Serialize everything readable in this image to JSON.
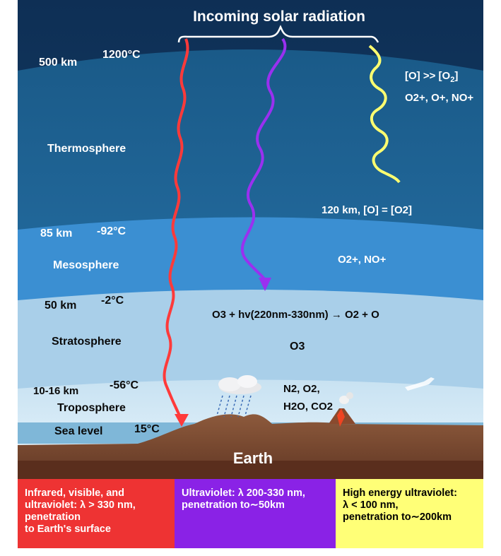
{
  "header": {
    "title": "Incoming solar radiation"
  },
  "altitudes": {
    "top": {
      "height": "500 km",
      "temp": "1200°C"
    },
    "mesopause": {
      "height": "85 km",
      "temp": "-92°C"
    },
    "stratopause": {
      "height": "50 km",
      "temp": "-2°C"
    },
    "tropopause": {
      "height": "10-16 km",
      "temp": "-56°C"
    },
    "sea_level": {
      "height": "Sea level",
      "temp": "15°C"
    }
  },
  "layers": {
    "thermosphere": "Thermosphere",
    "mesosphere": "Mesosphere",
    "stratosphere": "Stratosphere",
    "troposphere": "Troposphere",
    "earth": "Earth"
  },
  "chemistry": {
    "upper_ratio": "[O] >> [O",
    "upper_ratio_sub": "2",
    "upper_ratio_end": "]",
    "upper_ions": "O2+, O+, NO+",
    "km120": "120 km, [O] = [O2]",
    "meso_ions": "O2+, NO+",
    "ozone_reaction": "O3 + hv(220nm-330nm) → O2 + O",
    "ozone": "O3",
    "tropo_line1": "N2, O2,",
    "tropo_line2": "H2O, CO2"
  },
  "legend": {
    "infrared": "Infrared, visible, and\nultraviolet: λ > 330 nm,\npenetration\nto Earth's surface",
    "ultraviolet": "Ultraviolet: λ 200-330 nm,\npenetration to∼50km",
    "high_energy": "High energy ultraviolet:\nλ < 100 nm,\npenetration to∼200km"
  },
  "colors": {
    "infrared": "#ee3333",
    "ultraviolet": "#8a22e6",
    "high_energy": "#ffff77",
    "thermosphere": "#1a5a8a",
    "mesosphere": "#3a8ed0",
    "stratosphere": "#a6cde8",
    "troposphere": "#daeef8",
    "earth": "#7a4a32"
  }
}
